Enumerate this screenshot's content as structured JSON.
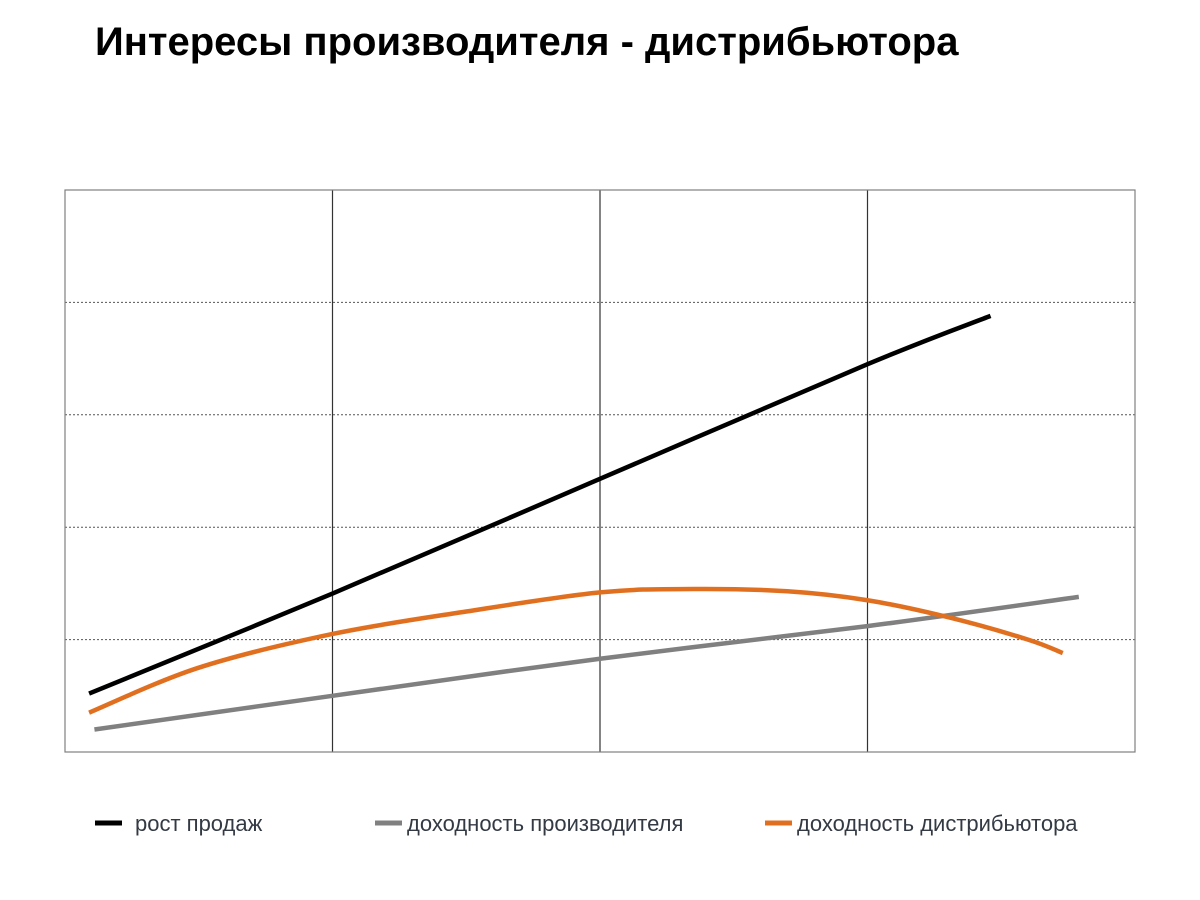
{
  "title": "Интересы производителя - дистрибьютора",
  "chart_data": {
    "type": "line",
    "title": "Интересы производителя - дистрибьютора",
    "xlabel": "",
    "ylabel": "",
    "xlim": [
      0,
      4
    ],
    "ylim": [
      0,
      5
    ],
    "vertical_gridlines": [
      1,
      2,
      3
    ],
    "horizontal_gridlines": [
      1,
      2,
      3,
      4
    ],
    "grid": true,
    "legend_position": "bottom",
    "series": [
      {
        "name": "рост продаж",
        "color": "#000000",
        "x": [
          0.09,
          1.0,
          2.0,
          3.0,
          3.46
        ],
        "y": [
          0.52,
          1.41,
          2.43,
          3.45,
          3.88
        ]
      },
      {
        "name": "доходность производителя",
        "color": "#808080",
        "x": [
          0.11,
          1.0,
          2.0,
          3.0,
          3.79
        ],
        "y": [
          0.2,
          0.5,
          0.83,
          1.12,
          1.38
        ]
      },
      {
        "name": "доходность дистрибьютора",
        "color": "#e07020",
        "x": [
          0.09,
          0.5,
          1.0,
          1.5,
          2.0,
          2.35,
          2.7,
          3.0,
          3.3,
          3.6,
          3.73
        ],
        "y": [
          0.35,
          0.75,
          1.05,
          1.25,
          1.42,
          1.45,
          1.43,
          1.35,
          1.2,
          1.0,
          0.88
        ]
      }
    ]
  }
}
